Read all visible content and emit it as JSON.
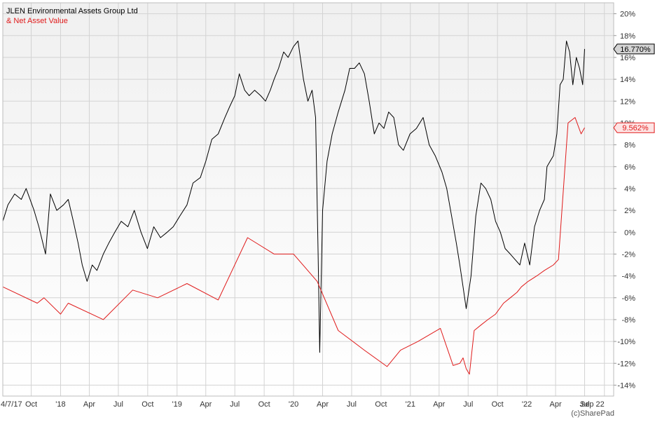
{
  "header": {
    "title": "JLEN Environmental Assets Group Ltd",
    "subtitle": "& Net Asset Value"
  },
  "credit": "(c)SharePad",
  "chart_data": {
    "type": "line",
    "ylim": [
      -15,
      21
    ],
    "yticks": [
      -14,
      -12,
      -10,
      -8,
      -6,
      -4,
      -2,
      0,
      2,
      4,
      6,
      8,
      10,
      12,
      14,
      16,
      18,
      20
    ],
    "ytick_labels": [
      "-14%",
      "-12%",
      "-10%",
      "-8%",
      "-6%",
      "-4%",
      "-2%",
      "0%",
      "2%",
      "4%",
      "6%",
      "8%",
      "10%",
      "12%",
      "14%",
      "16%",
      "18%",
      "20%"
    ],
    "x_range": [
      "2017-07-04",
      "2022-09-30"
    ],
    "xticks": [
      "2017-07-04",
      "2017-10-01",
      "2018-01-01",
      "2018-04-01",
      "2018-07-01",
      "2018-10-01",
      "2019-01-01",
      "2019-04-01",
      "2019-07-01",
      "2019-10-01",
      "2020-01-01",
      "2020-04-01",
      "2020-07-01",
      "2020-10-01",
      "2021-01-01",
      "2021-04-01",
      "2021-07-01",
      "2021-10-01",
      "2022-01-01",
      "2022-04-01",
      "2022-07-01",
      "2022-09-01"
    ],
    "xtick_labels": [
      "4/7/17",
      "Oct",
      "'18",
      "Apr",
      "Jul",
      "Oct",
      "'19",
      "Apr",
      "Jul",
      "Oct",
      "'20",
      "Apr",
      "Jul",
      "Oct",
      "'21",
      "Apr",
      "Jul",
      "Oct",
      "'22",
      "Apr",
      "Jul",
      "Sep 22"
    ],
    "grid": true,
    "series": [
      {
        "name": "JLEN Environmental Assets Group Ltd",
        "color": "#000000",
        "last_label": "16.770%",
        "label_bg": "#d4d4d4",
        "x": [
          "2017-07-04",
          "2017-07-20",
          "2017-08-10",
          "2017-08-31",
          "2017-09-15",
          "2017-10-10",
          "2017-10-25",
          "2017-11-15",
          "2017-11-30",
          "2017-12-20",
          "2018-01-10",
          "2018-01-25",
          "2018-02-10",
          "2018-02-25",
          "2018-03-10",
          "2018-03-25",
          "2018-04-10",
          "2018-04-25",
          "2018-05-15",
          "2018-06-01",
          "2018-06-20",
          "2018-07-10",
          "2018-07-31",
          "2018-08-20",
          "2018-09-10",
          "2018-09-30",
          "2018-10-20",
          "2018-11-10",
          "2018-12-01",
          "2018-12-20",
          "2019-01-10",
          "2019-02-01",
          "2019-02-20",
          "2019-03-15",
          "2019-04-01",
          "2019-04-20",
          "2019-05-10",
          "2019-05-31",
          "2019-06-15",
          "2019-07-01",
          "2019-07-15",
          "2019-08-01",
          "2019-08-15",
          "2019-09-01",
          "2019-09-20",
          "2019-10-05",
          "2019-10-20",
          "2019-11-01",
          "2019-11-15",
          "2019-12-01",
          "2019-12-15",
          "2020-01-01",
          "2020-01-15",
          "2020-02-01",
          "2020-02-15",
          "2020-02-28",
          "2020-03-10",
          "2020-03-18",
          "2020-03-23",
          "2020-04-01",
          "2020-04-15",
          "2020-05-01",
          "2020-05-20",
          "2020-06-10",
          "2020-06-25",
          "2020-07-10",
          "2020-07-25",
          "2020-08-10",
          "2020-08-25",
          "2020-09-10",
          "2020-09-25",
          "2020-10-10",
          "2020-10-25",
          "2020-11-10",
          "2020-11-25",
          "2020-12-10",
          "2020-12-31",
          "2021-01-20",
          "2021-02-10",
          "2021-03-01",
          "2021-03-20",
          "2021-04-10",
          "2021-04-25",
          "2021-05-10",
          "2021-05-25",
          "2021-06-05",
          "2021-06-15",
          "2021-06-25",
          "2021-07-10",
          "2021-07-25",
          "2021-08-10",
          "2021-08-25",
          "2021-09-10",
          "2021-09-25",
          "2021-10-10",
          "2021-10-25",
          "2021-11-10",
          "2021-11-25",
          "2021-12-10",
          "2021-12-25",
          "2022-01-10",
          "2022-01-25",
          "2022-02-10",
          "2022-02-25",
          "2022-03-05",
          "2022-03-15",
          "2022-03-25",
          "2022-04-05",
          "2022-04-15",
          "2022-04-25",
          "2022-05-05",
          "2022-05-15",
          "2022-05-25",
          "2022-06-05",
          "2022-06-15",
          "2022-06-25",
          "2022-07-01"
        ],
        "values": [
          1.0,
          2.5,
          3.5,
          3.0,
          4.0,
          2.0,
          0.5,
          -2.0,
          3.5,
          2.0,
          2.5,
          3.0,
          1.0,
          -1.0,
          -3.0,
          -4.5,
          -3.0,
          -3.5,
          -2.0,
          -1.0,
          0.0,
          1.0,
          0.5,
          2.0,
          0.0,
          -1.5,
          0.5,
          -0.5,
          0.0,
          0.5,
          1.5,
          2.5,
          4.5,
          5.0,
          6.5,
          8.5,
          9.0,
          10.5,
          11.5,
          12.5,
          14.5,
          13.0,
          12.5,
          13.0,
          12.5,
          12.0,
          13.0,
          14.0,
          15.0,
          16.5,
          16.0,
          17.0,
          17.5,
          14.0,
          12.0,
          13.0,
          10.5,
          -2.0,
          -11.0,
          2.0,
          6.5,
          9.0,
          11.0,
          13.0,
          15.0,
          15.0,
          15.5,
          14.5,
          12.0,
          9.0,
          10.0,
          9.5,
          11.0,
          10.5,
          8.0,
          7.5,
          9.0,
          9.5,
          10.5,
          8.0,
          7.0,
          5.5,
          4.0,
          1.5,
          -1.0,
          -3.0,
          -5.0,
          -7.0,
          -4.0,
          1.5,
          4.5,
          4.0,
          3.0,
          1.0,
          0.0,
          -1.5,
          -2.0,
          -2.5,
          -3.0,
          -1.0,
          -3.0,
          0.5,
          2.0,
          3.0,
          6.0,
          6.5,
          7.0,
          9.0,
          13.5,
          14.0,
          17.5,
          16.5,
          13.5,
          16.0,
          15.0,
          13.5,
          16.77
        ]
      },
      {
        "name": "Net Asset Value",
        "color": "#e01b1b",
        "last_label": "9.562%",
        "label_bg": "#fde4e4",
        "x": [
          "2017-07-04",
          "2017-10-20",
          "2017-11-10",
          "2018-01-01",
          "2018-01-25",
          "2018-05-15",
          "2018-08-15",
          "2018-11-01",
          "2019-02-01",
          "2019-05-10",
          "2019-08-10",
          "2019-11-01",
          "2020-01-01",
          "2020-03-15",
          "2020-05-20",
          "2020-08-10",
          "2020-10-20",
          "2020-12-01",
          "2021-01-25",
          "2021-04-05",
          "2021-05-15",
          "2021-06-05",
          "2021-06-15",
          "2021-06-25",
          "2021-07-05",
          "2021-07-20",
          "2021-08-10",
          "2021-09-01",
          "2021-09-25",
          "2021-10-20",
          "2021-11-10",
          "2021-12-01",
          "2021-12-15",
          "2022-01-05",
          "2022-02-01",
          "2022-02-25",
          "2022-03-25",
          "2022-04-10",
          "2022-05-10",
          "2022-06-01",
          "2022-06-20",
          "2022-07-01"
        ],
        "values": [
          -5.0,
          -6.5,
          -6.0,
          -7.5,
          -6.5,
          -8.0,
          -5.3,
          -6.0,
          -4.7,
          -6.2,
          -0.5,
          -2.0,
          -2.0,
          -4.5,
          -9.0,
          -10.8,
          -12.3,
          -10.8,
          -10.0,
          -8.8,
          -12.2,
          -12.0,
          -11.5,
          -12.5,
          -13.0,
          -9.0,
          -8.5,
          -8.0,
          -7.5,
          -6.5,
          -6.0,
          -5.5,
          -5.0,
          -4.5,
          -4.0,
          -3.5,
          -3.0,
          -2.5,
          10.0,
          10.5,
          9.0,
          9.562
        ]
      }
    ]
  }
}
